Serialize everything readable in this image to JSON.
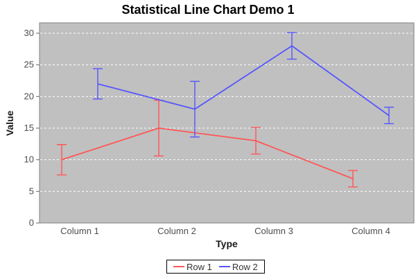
{
  "title": "Statistical Line Chart Demo 1",
  "colors": {
    "plot_background": "#C0C0C0",
    "gridline": "#FFFFFF",
    "plot_outline": "#808080",
    "series1": "#FF5555",
    "series2": "#5555FF",
    "tick_text": "#4d4d4d",
    "axis_label_text": "#1a1a1a"
  },
  "chart_data": {
    "type": "line",
    "title": "Statistical Line Chart Demo 1",
    "xlabel": "Type",
    "ylabel": "Value",
    "categories": [
      "Column 1",
      "Column 2",
      "Column 3",
      "Column 4"
    ],
    "y_ticks": [
      0,
      5,
      10,
      15,
      20,
      25,
      30
    ],
    "ylim": [
      0,
      31.6
    ],
    "grid": "horizontal, white dashed",
    "error_bars": true,
    "legend_position": "bottom",
    "series": [
      {
        "name": "Row 1",
        "color": "#FF5555",
        "values": [
          10,
          15,
          13,
          7
        ],
        "std_devs": [
          2.4,
          4.4,
          2.1,
          1.3
        ]
      },
      {
        "name": "Row 2",
        "color": "#5555FF",
        "values": [
          22,
          18,
          28,
          17
        ],
        "std_devs": [
          2.4,
          4.4,
          2.1,
          1.3
        ]
      }
    ]
  },
  "legend": {
    "items": [
      {
        "label": "Row 1",
        "color": "#FF5555"
      },
      {
        "label": "Row 2",
        "color": "#5555FF"
      }
    ]
  }
}
